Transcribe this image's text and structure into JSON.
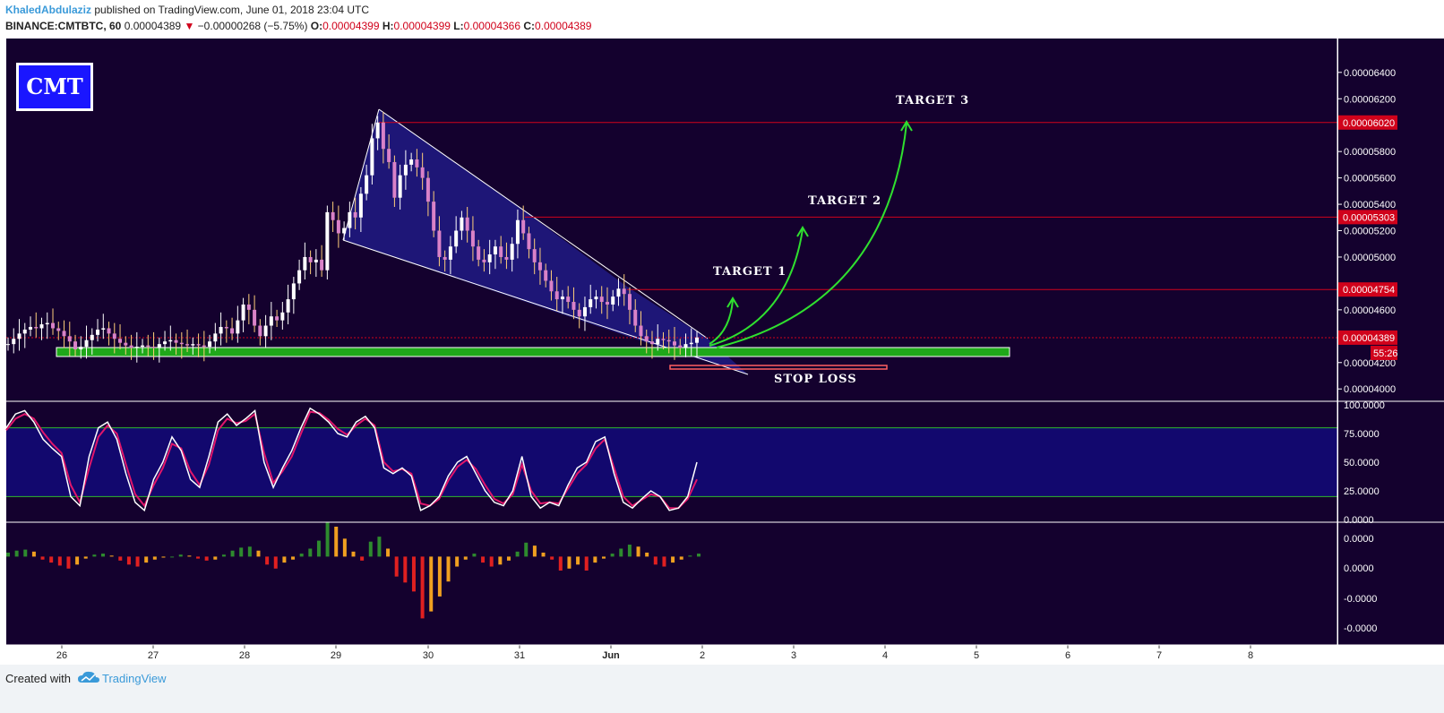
{
  "header": {
    "author": "KhaledAbdulaziz",
    "published_text": "published on TradingView.com, June 01, 2018 23:04 UTC",
    "symbol": "BINANCE:CMTBTC, 60",
    "last_price": "0.00004389",
    "change_arrow": "▼",
    "change": "−0.00000268 (−5.75%)",
    "o_label": "O:",
    "o": "0.00004399",
    "h_label": "H:",
    "h": "0.00004399",
    "l_label": "L:",
    "l": "0.00004366",
    "c_label": "C:",
    "c": "0.00004389"
  },
  "badge": "CMT",
  "footer": {
    "created_with": "Created with",
    "brand": "TradingView"
  },
  "colors": {
    "background": "#14012e",
    "pattern_fill": "#1f1880",
    "target_line": "#d0021b",
    "support_zone": "#1fa81a",
    "arrows": "#2fe02f",
    "stoch_k": "#ffffff",
    "stoch_d": "#e0166a",
    "hist_up": "#2e8b2e",
    "hist_down": "#e02020",
    "hist_orange": "#f0a020"
  },
  "chart_data": {
    "type": "candlestick",
    "x_ticks": [
      "26",
      "27",
      "28",
      "29",
      "30",
      "31",
      "Jun",
      "2",
      "3",
      "4",
      "5",
      "6",
      "7",
      "8"
    ],
    "price_axis": {
      "ticks": [
        "0.00006400",
        "0.00006200",
        "0.00005800",
        "0.00005600",
        "0.00005400",
        "0.00005200",
        "0.00005000",
        "0.00004600",
        "0.00004200",
        "0.00004000"
      ],
      "range": [
        3.92e-05,
        6.65e-05
      ]
    },
    "price_labels": [
      {
        "text": "0.00006020",
        "value": 6.02e-05
      },
      {
        "text": "0.00005303",
        "value": 5.303e-05
      },
      {
        "text": "0.00004754",
        "value": 4.754e-05
      },
      {
        "text": "0.00004389",
        "value": 4.389e-05
      }
    ],
    "countdown": "55:26",
    "annotations": {
      "target1": "TARGET 1",
      "target2": "TARGET 2",
      "target3": "TARGET 3",
      "stop_loss": "STOP LOSS"
    },
    "candles_close": [
      4.34,
      4.38,
      4.42,
      4.45,
      4.47,
      4.46,
      4.49,
      4.5,
      4.46,
      4.44,
      4.4,
      4.36,
      4.3,
      4.32,
      4.37,
      4.41,
      4.45,
      4.46,
      4.42,
      4.38,
      4.35,
      4.33,
      4.31,
      4.32,
      4.33,
      4.32,
      4.31,
      4.34,
      4.36,
      4.37,
      4.35,
      4.34,
      4.33,
      4.34,
      4.33,
      4.32,
      4.36,
      4.42,
      4.47,
      4.46,
      4.42,
      4.52,
      4.64,
      4.6,
      4.48,
      4.4,
      4.48,
      4.55,
      4.52,
      4.58,
      4.68,
      4.8,
      4.9,
      5.0,
      4.96,
      4.98,
      4.9,
      5.34,
      5.28,
      5.18,
      5.22,
      5.34,
      5.3,
      5.48,
      5.62,
      5.9,
      6.02,
      5.82,
      5.72,
      5.45,
      5.62,
      5.7,
      5.74,
      5.68,
      5.6,
      5.42,
      5.2,
      5.0,
      4.98,
      5.08,
      5.2,
      5.3,
      5.2,
      5.08,
      4.98,
      4.96,
      5.02,
      5.08,
      5.0,
      4.98,
      5.1,
      5.28,
      5.18,
      5.06,
      4.96,
      4.9,
      4.82,
      4.74,
      4.68,
      4.7,
      4.66,
      4.6,
      4.55,
      4.62,
      4.68,
      4.7,
      4.66,
      4.64,
      4.7,
      4.76,
      4.72,
      4.6,
      4.48,
      4.4,
      4.36,
      4.34,
      4.38,
      4.37,
      4.36,
      4.33,
      4.31,
      4.34,
      4.35,
      4.39
    ],
    "stoch_axis": {
      "ticks": [
        "100.0000",
        "75.0000",
        "50.0000",
        "25.0000",
        "0.0000"
      ],
      "range": [
        0,
        100
      ],
      "band": [
        20,
        80
      ]
    },
    "stoch_k": [
      80,
      92,
      95,
      85,
      70,
      62,
      55,
      20,
      12,
      55,
      80,
      85,
      70,
      40,
      15,
      8,
      35,
      50,
      72,
      60,
      35,
      28,
      55,
      85,
      92,
      82,
      88,
      95,
      50,
      28,
      45,
      60,
      80,
      97,
      92,
      85,
      75,
      72,
      85,
      90,
      80,
      45,
      40,
      45,
      38,
      8,
      12,
      20,
      38,
      50,
      55,
      40,
      25,
      15,
      12,
      25,
      55,
      20,
      10,
      15,
      12,
      30,
      45,
      50,
      68,
      72,
      40,
      15,
      10,
      18,
      25,
      20,
      8,
      10,
      20,
      50
    ],
    "stoch_d": [
      78,
      88,
      92,
      88,
      76,
      66,
      58,
      30,
      15,
      45,
      72,
      82,
      75,
      48,
      22,
      12,
      30,
      45,
      66,
      62,
      42,
      30,
      48,
      78,
      88,
      84,
      86,
      92,
      58,
      32,
      42,
      55,
      75,
      94,
      93,
      87,
      79,
      74,
      82,
      88,
      82,
      50,
      42,
      44,
      40,
      14,
      12,
      18,
      34,
      46,
      52,
      44,
      30,
      18,
      14,
      22,
      48,
      25,
      14,
      15,
      14,
      27,
      40,
      48,
      62,
      70,
      45,
      20,
      12,
      17,
      22,
      20,
      10,
      10,
      18,
      35
    ],
    "hist_axis": {
      "ticks": [
        "0.0000",
        "0.0000",
        "-0.0000",
        "-0.0000"
      ],
      "range": [
        -8.5e-07,
        3e-07
      ]
    },
    "hist_values": [
      0.4,
      0.6,
      0.7,
      0.5,
      -0.3,
      -0.6,
      -0.9,
      -1.2,
      -0.8,
      -0.2,
      0.2,
      0.3,
      0.1,
      -0.4,
      -0.8,
      -1.0,
      -0.6,
      -0.3,
      -0.1,
      0.0,
      0.2,
      0.1,
      -0.2,
      -0.4,
      -0.3,
      0.2,
      0.6,
      0.9,
      1.0,
      0.6,
      -0.8,
      -1.2,
      -0.6,
      -0.3,
      0.3,
      0.8,
      1.6,
      3.5,
      3.0,
      1.8,
      0.5,
      -0.4,
      1.5,
      2.0,
      0.8,
      -2.0,
      -2.6,
      -3.5,
      -6.2,
      -5.5,
      -4.0,
      -2.5,
      -1.0,
      -0.3,
      0.3,
      -0.6,
      -1.0,
      -0.8,
      -0.4,
      0.5,
      1.4,
      1.1,
      0.4,
      -0.3,
      -1.4,
      -1.2,
      -0.8,
      -1.4,
      -0.6,
      -0.2,
      0.3,
      0.8,
      1.2,
      1.0,
      0.4,
      -0.8,
      -1.0,
      -0.6,
      -0.3,
      0.1,
      0.3
    ]
  }
}
